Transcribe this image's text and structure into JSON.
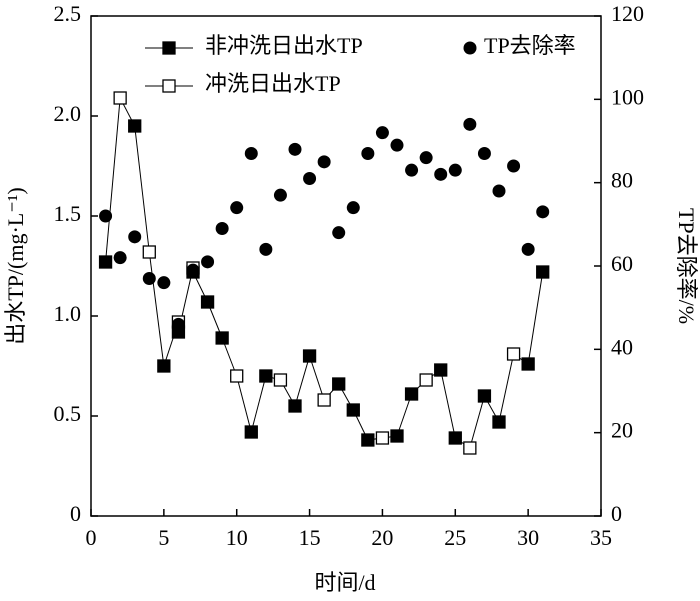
{
  "chart_data": {
    "type": "dual-axis-scatter-line",
    "x_label": "时间/d",
    "y_label": "出水TP/(mg·L⁻¹)",
    "y2_label": "TP去除率/%",
    "x": [
      1,
      2,
      3,
      4,
      5,
      6,
      7,
      8,
      9,
      10,
      11,
      12,
      13,
      14,
      15,
      16,
      17,
      18,
      19,
      20,
      21,
      22,
      23,
      24,
      25,
      26,
      27,
      28,
      29,
      30,
      31
    ],
    "xlim": [
      0,
      35
    ],
    "xticks": [
      0,
      5,
      10,
      15,
      20,
      25,
      30,
      35
    ],
    "ylim": [
      0,
      2.5
    ],
    "yticks": [
      {
        "value": 0,
        "label": "0"
      },
      0.5,
      {
        "value": 1,
        "label": "1.0"
      },
      1.5,
      {
        "value": 2,
        "label": "2.0"
      },
      2.5
    ],
    "y2lim": [
      0,
      120
    ],
    "y2ticks": [
      0,
      20,
      40,
      60,
      80,
      100,
      120
    ],
    "connect_tp_series": true,
    "series": [
      {
        "name": "非冲洗日出水TP",
        "color": "#000000",
        "marker": "filled-square",
        "axis": "y",
        "values": [
          1.27,
          null,
          1.95,
          null,
          0.75,
          0.92,
          1.22,
          1.07,
          0.89,
          null,
          0.42,
          0.7,
          null,
          0.55,
          0.8,
          null,
          0.66,
          0.53,
          0.38,
          null,
          0.4,
          0.61,
          null,
          0.73,
          0.39,
          null,
          0.6,
          0.47,
          null,
          0.76,
          1.22
        ]
      },
      {
        "name": "冲洗日出水TP",
        "color": "#000000",
        "marker": "open-square",
        "axis": "y",
        "values": [
          null,
          2.09,
          null,
          1.32,
          null,
          0.97,
          1.24,
          null,
          null,
          0.7,
          null,
          null,
          0.68,
          null,
          null,
          0.58,
          null,
          null,
          null,
          0.39,
          null,
          null,
          0.68,
          null,
          null,
          0.34,
          null,
          null,
          0.81,
          null,
          null
        ]
      },
      {
        "name": "TP去除率",
        "color": "#000000",
        "marker": "circle",
        "axis": "y2",
        "values": [
          72,
          62,
          67,
          57,
          56,
          46,
          59,
          61,
          69,
          74,
          87,
          64,
          77,
          88,
          81,
          85,
          68,
          74,
          87,
          92,
          89,
          83,
          86,
          82,
          83,
          94,
          87,
          78,
          84,
          64,
          73
        ]
      }
    ]
  }
}
